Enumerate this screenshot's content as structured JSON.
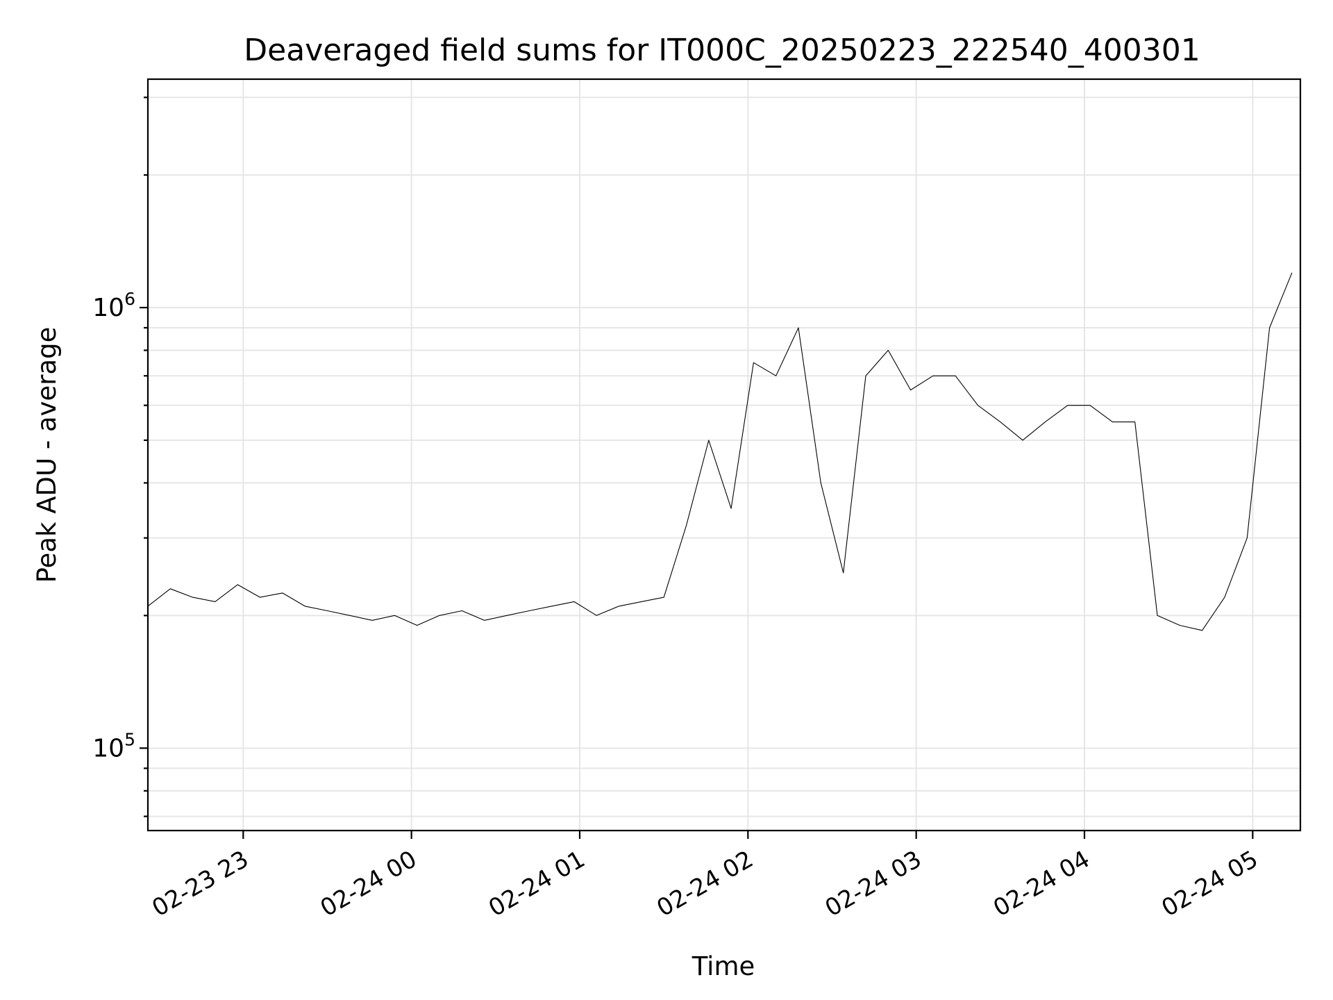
{
  "chart_data": {
    "type": "line",
    "title": "Deaveraged field sums for IT000C_20250223_222540_400301",
    "xlabel": "Time",
    "ylabel": "Peak ADU - average",
    "y_scale": "log",
    "ylim": [
      65000,
      3300000
    ],
    "xlim": [
      "2025-02-23 22:26",
      "2025-02-24 05:17"
    ],
    "x_ticks": [
      {
        "label": "02-23 23",
        "value": "2025-02-23 23:00"
      },
      {
        "label": "02-24 00",
        "value": "2025-02-24 00:00"
      },
      {
        "label": "02-24 01",
        "value": "2025-02-24 01:00"
      },
      {
        "label": "02-24 02",
        "value": "2025-02-24 02:00"
      },
      {
        "label": "02-24 03",
        "value": "2025-02-24 03:00"
      },
      {
        "label": "02-24 04",
        "value": "2025-02-24 04:00"
      },
      {
        "label": "02-24 05",
        "value": "2025-02-24 05:00"
      }
    ],
    "y_ticks": [
      {
        "base": "10",
        "exp": "5",
        "value": 100000
      },
      {
        "base": "10",
        "exp": "6",
        "value": 1000000
      }
    ],
    "grid": true,
    "line_color": "#000000",
    "series": [
      {
        "x": [
          "2025-02-23 22:26",
          "2025-02-23 22:34",
          "2025-02-23 22:42",
          "2025-02-23 22:50",
          "2025-02-23 22:58",
          "2025-02-23 23:06",
          "2025-02-23 23:14",
          "2025-02-23 23:22",
          "2025-02-23 23:30",
          "2025-02-23 23:38",
          "2025-02-23 23:46",
          "2025-02-23 23:54",
          "2025-02-24 00:02",
          "2025-02-24 00:10",
          "2025-02-24 00:18",
          "2025-02-24 00:26",
          "2025-02-24 00:34",
          "2025-02-24 00:42",
          "2025-02-24 00:50",
          "2025-02-24 00:58",
          "2025-02-24 01:06",
          "2025-02-24 01:14",
          "2025-02-24 01:22",
          "2025-02-24 01:30",
          "2025-02-24 01:38",
          "2025-02-24 01:46",
          "2025-02-24 01:54",
          "2025-02-24 02:02",
          "2025-02-24 02:10",
          "2025-02-24 02:18",
          "2025-02-24 02:26",
          "2025-02-24 02:34",
          "2025-02-24 02:42",
          "2025-02-24 02:50",
          "2025-02-24 02:58",
          "2025-02-24 03:06",
          "2025-02-24 03:14",
          "2025-02-24 03:22",
          "2025-02-24 03:30",
          "2025-02-24 03:38",
          "2025-02-24 03:46",
          "2025-02-24 03:54",
          "2025-02-24 04:02",
          "2025-02-24 04:10",
          "2025-02-24 04:18",
          "2025-02-24 04:26",
          "2025-02-24 04:34",
          "2025-02-24 04:42",
          "2025-02-24 04:50",
          "2025-02-24 04:58",
          "2025-02-24 05:06",
          "2025-02-24 05:14"
        ],
        "y": [
          210000,
          230000,
          220000,
          215000,
          235000,
          220000,
          225000,
          210000,
          205000,
          200000,
          195000,
          200000,
          190000,
          200000,
          205000,
          195000,
          200000,
          205000,
          210000,
          215000,
          200000,
          210000,
          215000,
          220000,
          320000,
          500000,
          350000,
          750000,
          700000,
          900000,
          400000,
          250000,
          700000,
          800000,
          650000,
          700000,
          700000,
          600000,
          550000,
          500000,
          550000,
          600000,
          600000,
          550000,
          550000,
          200000,
          190000,
          185000,
          220000,
          300000,
          900000,
          1200000
        ]
      }
    ]
  }
}
